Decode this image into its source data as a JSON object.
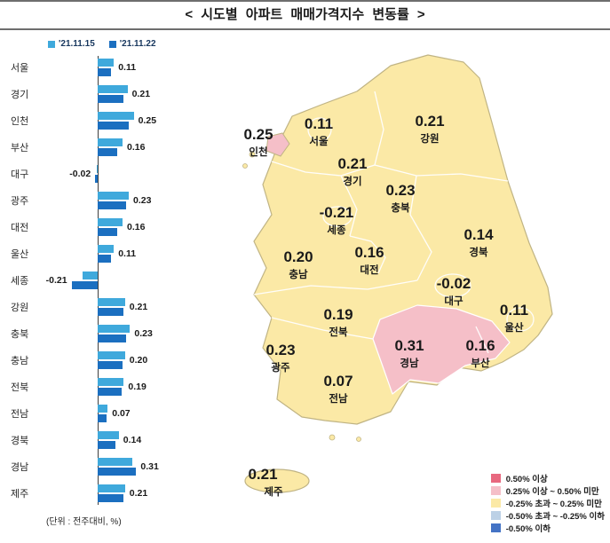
{
  "title": "< 시도별 아파트 매매가격지수 변동률 >",
  "bar_chart": {
    "legend": [
      {
        "label": "'21.11.15",
        "color": "#3FA9DC"
      },
      {
        "label": "'21.11.22",
        "color": "#1B6FC0"
      }
    ],
    "unit_note": "(단위 : 전주대비, %)"
  },
  "map_legend": [
    {
      "label": "0.50% 이상",
      "color": "#E8687F"
    },
    {
      "label": "0.25% 이상 ~ 0.50% 미만",
      "color": "#F5BFC8"
    },
    {
      "label": "-0.25% 초과 ~ 0.25% 미만",
      "color": "#FBE9A6"
    },
    {
      "label": "-0.50% 초과 ~ -0.25% 이하",
      "color": "#BCD1E6"
    },
    {
      "label": "-0.50% 이하",
      "color": "#4473C5"
    }
  ],
  "chart_data": [
    {
      "type": "bar",
      "orientation": "horizontal",
      "title": "시도별 아파트 매매가격지수 변동률",
      "categories": [
        "서울",
        "경기",
        "인천",
        "부산",
        "대구",
        "광주",
        "대전",
        "울산",
        "세종",
        "강원",
        "충북",
        "충남",
        "전북",
        "전남",
        "경북",
        "경남",
        "제주"
      ],
      "series": [
        {
          "name": "'21.11.15",
          "values": [
            0.13,
            0.24,
            0.29,
            0.2,
            -0.01,
            0.25,
            0.2,
            0.13,
            -0.12,
            0.22,
            0.26,
            0.22,
            0.21,
            0.08,
            0.17,
            0.28,
            0.22
          ]
        },
        {
          "name": "'21.11.22",
          "values": [
            0.11,
            0.21,
            0.25,
            0.16,
            -0.02,
            0.23,
            0.16,
            0.11,
            -0.21,
            0.21,
            0.23,
            0.2,
            0.19,
            0.07,
            0.14,
            0.31,
            0.21
          ]
        }
      ],
      "xlim": [
        -0.3,
        0.4
      ],
      "unit": "(단위 : 전주대비, %)",
      "legend_position": "top"
    },
    {
      "type": "heatmap",
      "subtype": "choropleth-map-korea",
      "value_unit": "% (전주대비)",
      "regions": [
        {
          "name": "인천",
          "value": 0.25
        },
        {
          "name": "서울",
          "value": 0.11
        },
        {
          "name": "경기",
          "value": 0.21
        },
        {
          "name": "강원",
          "value": 0.21
        },
        {
          "name": "충북",
          "value": 0.23
        },
        {
          "name": "세종",
          "value": -0.21
        },
        {
          "name": "경북",
          "value": 0.14
        },
        {
          "name": "충남",
          "value": 0.2
        },
        {
          "name": "대전",
          "value": 0.16
        },
        {
          "name": "대구",
          "value": -0.02
        },
        {
          "name": "울산",
          "value": 0.11
        },
        {
          "name": "전북",
          "value": 0.19
        },
        {
          "name": "광주",
          "value": 0.23
        },
        {
          "name": "경남",
          "value": 0.31
        },
        {
          "name": "부산",
          "value": 0.16
        },
        {
          "name": "전남",
          "value": 0.07
        },
        {
          "name": "제주",
          "value": 0.21
        }
      ]
    }
  ]
}
